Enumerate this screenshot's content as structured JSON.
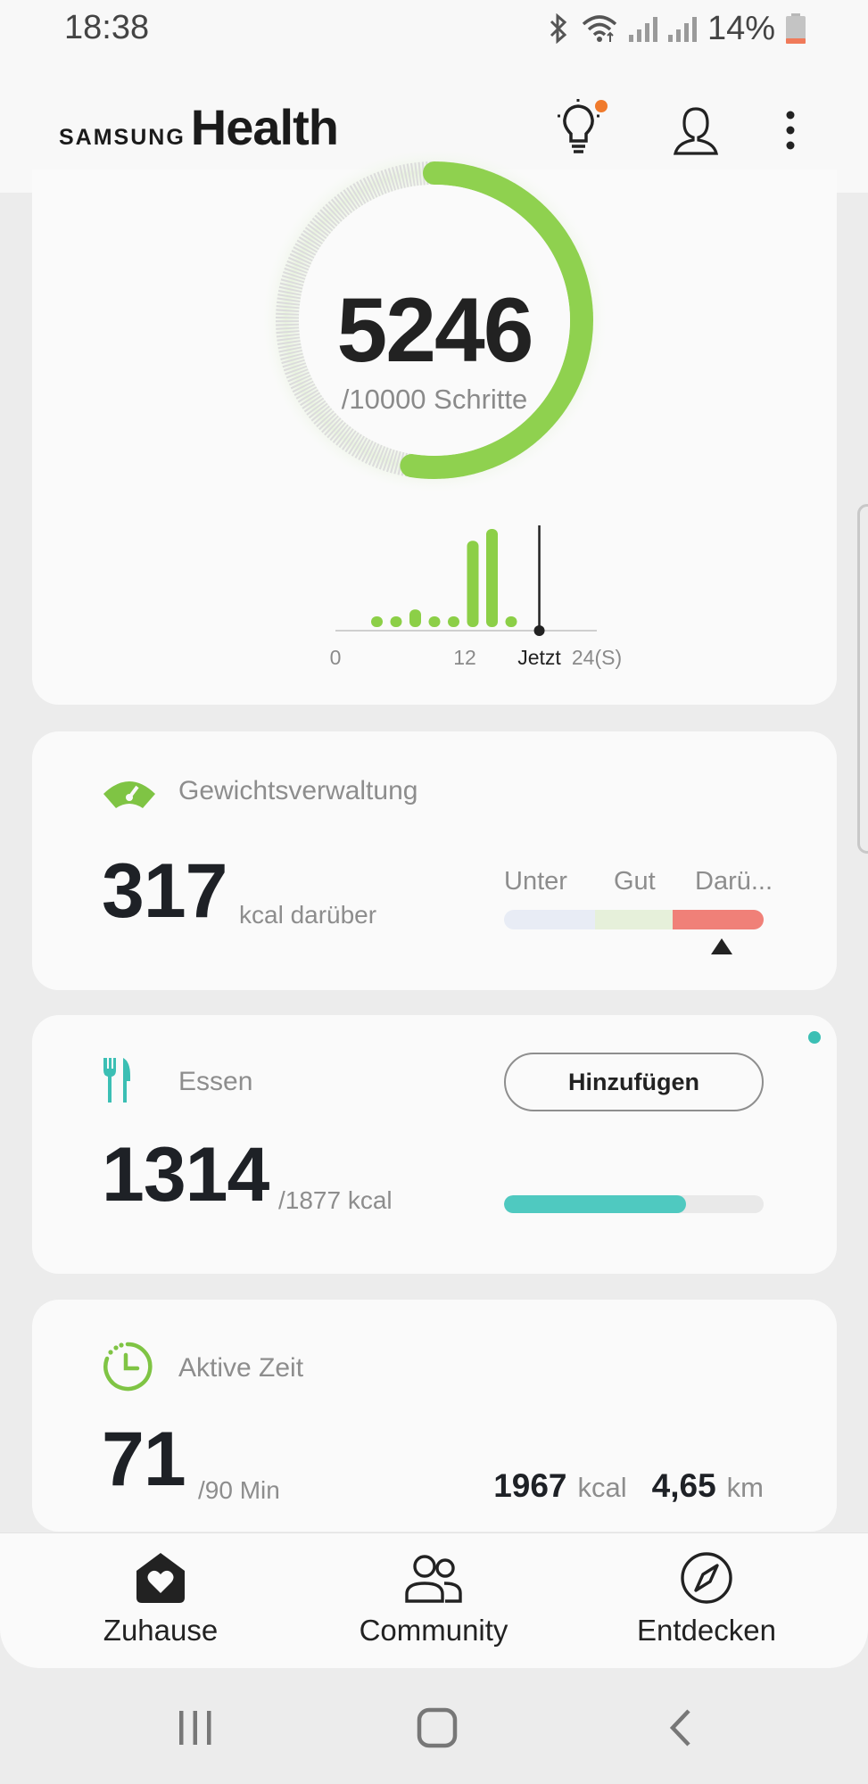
{
  "status_bar": {
    "time": "18:38",
    "battery": "14%"
  },
  "header": {
    "brand": "SAMSUNG",
    "product": "Health",
    "icons": [
      "lightbulb-icon",
      "profile-icon",
      "more-vert-icon"
    ],
    "notification_dot_color": "#f07b2d"
  },
  "steps": {
    "count": "5246",
    "goal_text": "/10000 Schritte",
    "progress_fraction": 0.5246,
    "chart_data": {
      "type": "bar",
      "x_tick_labels": [
        "0",
        "12",
        "Jetzt",
        "24(S)"
      ],
      "values": [
        0.08,
        0.09,
        0.18,
        0.08,
        0.08,
        0.88,
        1.0,
        0.06
      ],
      "now_position_fraction": 0.78,
      "color": "#8ccf47"
    }
  },
  "weight": {
    "title": "Gewichtsverwaltung",
    "value": "317",
    "unit": "kcal darüber",
    "range_labels": [
      "Unter",
      "Gut",
      "Darü..."
    ],
    "range_colors": [
      "#e8ecf5",
      "#e6f0da",
      "#f08078"
    ],
    "marker_fraction": 0.84
  },
  "food": {
    "title": "Essen",
    "add_label": "Hinzufügen",
    "value": "1314",
    "unit": "/1877 kcal",
    "progress_fraction": 0.7
  },
  "active": {
    "title": "Aktive Zeit",
    "value": "71",
    "unit": "/90 Min",
    "kcal_value": "1967",
    "kcal_unit": "kcal",
    "distance_value": "4,65",
    "distance_unit": "km"
  },
  "bottom_nav": {
    "items": [
      {
        "label": "Zuhause",
        "icon": "home-heart-icon",
        "active": true
      },
      {
        "label": "Community",
        "icon": "people-icon",
        "active": false
      },
      {
        "label": "Entdecken",
        "icon": "compass-icon",
        "active": false
      }
    ]
  },
  "system_nav": {
    "icons": [
      "recent-apps-icon",
      "home-icon",
      "back-icon"
    ]
  }
}
